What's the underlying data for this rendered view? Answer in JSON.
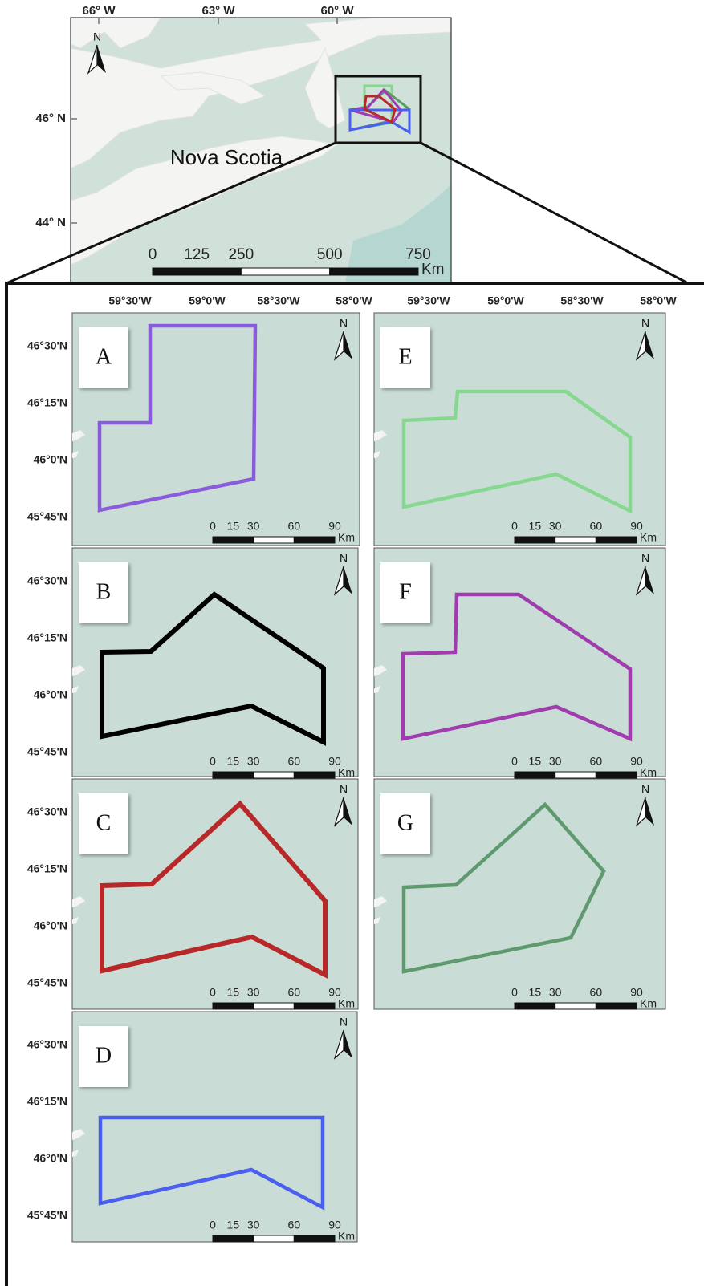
{
  "overview": {
    "longitudes": [
      "66° W",
      "63° W",
      "60° W"
    ],
    "latitudes": [
      "46° N",
      "44° N"
    ],
    "region": "Nova Scotia",
    "north": "N",
    "scale": {
      "ticks": [
        0,
        125,
        250,
        500,
        750
      ],
      "unit": "Km"
    }
  },
  "inset": {
    "longitudes": [
      "59°30'W",
      "59°0'W",
      "58°30'W",
      "58°0'W"
    ],
    "latitudes": [
      "46°30'N",
      "46°15'N",
      "46°0'N",
      "45°45'N"
    ],
    "north": "N",
    "scale": {
      "ticks": [
        0,
        15,
        30,
        60,
        90
      ],
      "unit": "Km"
    },
    "panels": [
      {
        "label": "A",
        "color": "#8a5cdc"
      },
      {
        "label": "B",
        "color": "#000000"
      },
      {
        "label": "C",
        "color": "#b82828"
      },
      {
        "label": "D",
        "color": "#4a5ef0"
      },
      {
        "label": "E",
        "color": "#86d890"
      },
      {
        "label": "F",
        "color": "#a03cae"
      },
      {
        "label": "G",
        "color": "#5e9a6e"
      }
    ]
  }
}
